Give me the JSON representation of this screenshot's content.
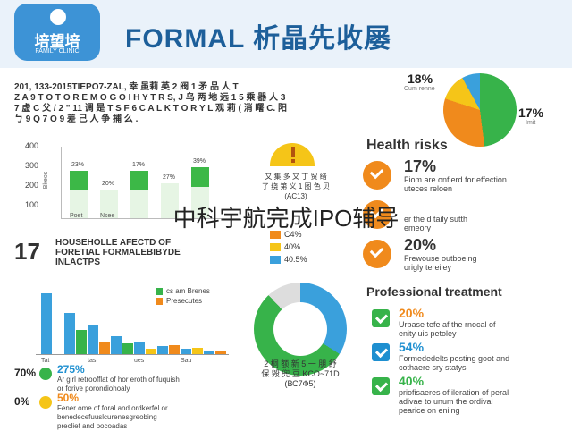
{
  "header": {
    "logo_name": "培望培",
    "logo_sub": "FAMILY CLINIC",
    "title": "FORMAL 析晶先收屡"
  },
  "intro_text": "201, 133-2015TIEPO7-ZAL, 幸 虽莉 英 2 阀 1 矛 品 人 T\nZ A 9 T O T O R E M O G O I H Y T R S, J 乌 两 地 远 1 5 乘 器 人 3\n7 虚 C 父 / 2 \" 11 调 是 T S F 6 C A L K T O R Y L 观 莉 ( 消 曙 C. 阳\nㄅ 9 Q 7 O 9 差 己 人 争 捕 么 .",
  "pie_top": {
    "label1": "18%",
    "label1_sub": "Cum renne",
    "label2": "17%",
    "label2_sub": "Imit",
    "colors": [
      "#37b34a",
      "#f08a1c",
      "#f5c518",
      "#3aa0dc"
    ]
  },
  "bar_chart_1": {
    "ylabel": "Bkeos",
    "yticks": [
      "400",
      "300",
      "200",
      "100"
    ],
    "categories": [
      "Poet",
      "Nsee",
      "",
      "",
      ""
    ],
    "labels": [
      "23%",
      "20%",
      "17%",
      "27%",
      "39%"
    ],
    "values": [
      0.3,
      0.0,
      0.3,
      0.0,
      0.32
    ],
    "bg_values": [
      0.75,
      0.45,
      0.75,
      0.55,
      0.82
    ]
  },
  "household": {
    "number": "17",
    "text": "HOUSEHOLLE AFECTD OF\nFORETIAL FORMALEBIBYDE\nINLACTPS"
  },
  "warning": {
    "text": "又 集 多 又 丁 贸 绪\n了 绕 第 义 1 图 色 贝\n(AC13)",
    "items": [
      {
        "color": "#f08a1c",
        "label": "C4%"
      },
      {
        "color": "#f5c518",
        "label": "40%"
      },
      {
        "color": "#3aa0dc",
        "label": "40.5%"
      }
    ]
  },
  "health_risks": {
    "title": "Health risks",
    "items": [
      {
        "pct": "17%",
        "desc": "Fiom are onfierd for effection\nuteces reloen"
      },
      {
        "pct": "",
        "desc": "er the d taily sutth\nemeory"
      },
      {
        "pct": "20%",
        "desc": "Frewouse outboeing\norigly tereiley"
      }
    ]
  },
  "overlay": "中科宇航完成IPO辅导",
  "bar_chart_2": {
    "legend": [
      {
        "color": "#37b34a",
        "label": "cs am Brenes"
      },
      {
        "color": "#f08a1c",
        "label": "Presecutes"
      }
    ],
    "categories": [
      "Tat",
      "",
      "tas",
      "",
      "ues",
      "",
      "Sau",
      ""
    ],
    "series": [
      {
        "name": "",
        "color": "#3aa0dc",
        "values": [
          95,
          64,
          44,
          28,
          18,
          12,
          8,
          4
        ]
      },
      {
        "name": "",
        "color": "#37b34a",
        "values": [
          0,
          38,
          0,
          16,
          0,
          0,
          0,
          0
        ]
      },
      {
        "name": "",
        "color": "#f08a1c",
        "values": [
          0,
          0,
          20,
          0,
          0,
          14,
          0,
          6
        ]
      },
      {
        "name": "",
        "color": "#f5c518",
        "values": [
          0,
          0,
          0,
          0,
          8,
          0,
          10,
          0
        ]
      }
    ]
  },
  "rows": [
    {
      "left": "70%",
      "color": "#37b34a",
      "pct": "275%",
      "pct_color": "#1e8fd0",
      "desc": "Ar girl retroofflat of hor eroth of fuquish\nor forive porondiohoaly"
    },
    {
      "left": "0%",
      "color": "#f5c518",
      "pct": "50%",
      "pct_color": "#f08a1c",
      "desc": "Fener ome of foral and ordkerfel or\nbenedecefuuslcurenesgreobing\npreclief and pocoadas"
    }
  ],
  "donut": {
    "text": "2 桐 额 新 5 一 朋 舒\n保 毁 兜 豆 KCO~71D\n(ВС7Ф5)",
    "colors": [
      "#3aa0dc",
      "#37b34a",
      "#dddddd"
    ]
  },
  "professional_treatment": {
    "title": "Professional treatment",
    "items": [
      {
        "pct": "20%",
        "pct_color": "#f08a1c",
        "box": "#37b34a",
        "desc": "Urbase tefe af the rnocal of\nenity uis petoley"
      },
      {
        "pct": "54%",
        "pct_color": "#1e8fd0",
        "box": "#1e8fd0",
        "desc": "Formededelts pesting goot and\ncothaere sry statys"
      },
      {
        "pct": "40%",
        "pct_color": "#37b34a",
        "box": "#37b34a",
        "desc": "priofisaeres of ileration of peral\nadivae to unum the ordival\npearice on eniing"
      }
    ]
  }
}
